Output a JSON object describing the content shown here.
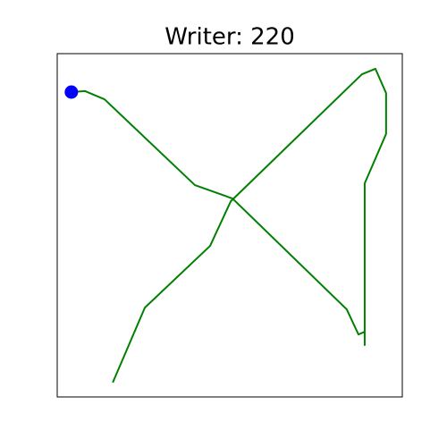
{
  "chart_data": {
    "type": "line",
    "title": "Writer: 220",
    "x": [
      4.1,
      8.0,
      13.7,
      39.9,
      50.8,
      83.9,
      87.3,
      89.1,
      89.1,
      89.1,
      95.3,
      95.3,
      92.2,
      88.3,
      50.3,
      44.3,
      25.4,
      16.1
    ],
    "series": [
      {
        "color": "#008000",
        "values": [
          88.8,
          89.1,
          86.7,
          61.7,
          57.8,
          25.5,
          18.2,
          19.0,
          15.1,
          62.2,
          76.6,
          88.5,
          95.6,
          94.0,
          57.0,
          44.0,
          26.0,
          4.2
        ]
      }
    ],
    "start_marker_color": "#0000ff",
    "xlim": [
      0,
      100
    ],
    "ylim": [
      0,
      100
    ]
  }
}
